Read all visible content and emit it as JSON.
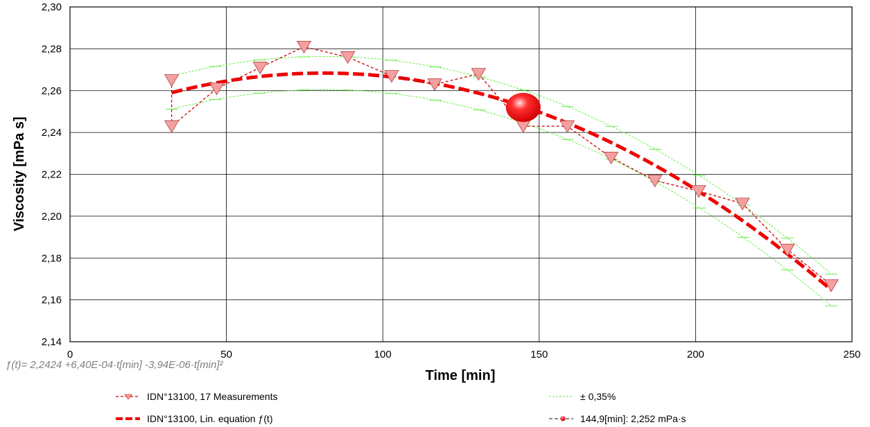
{
  "chart_data": {
    "type": "line",
    "xlabel": "Time [min]",
    "ylabel": "Viscosity [mPa s]",
    "xlim": [
      0,
      250
    ],
    "ylim": [
      2.14,
      2.3
    ],
    "x_ticks": [
      0,
      50,
      100,
      150,
      200,
      250
    ],
    "x_tick_labels": [
      "0",
      "50",
      "100",
      "150",
      "200",
      "250"
    ],
    "y_ticks": [
      2.14,
      2.16,
      2.18,
      2.2,
      2.22,
      2.24,
      2.26,
      2.28,
      2.3
    ],
    "y_tick_labels": [
      "2,14",
      "2,16",
      "2,18",
      "2,20",
      "2,22",
      "2,24",
      "2,26",
      "2,28",
      "2,30"
    ],
    "grid": true,
    "equation_text": "ƒ(t)= 2,2424 +6,40E-04·t[min] -3,94E-06·t[min]²",
    "equation": {
      "a": 2.2424,
      "b": 0.00064,
      "c": -3.94e-06
    },
    "band_percent": 0.35,
    "series": [
      {
        "name": "IDN°13100, 17 Measurements",
        "style": "measurements",
        "color": "#cc0000",
        "marker_color": "#f4a0a0",
        "x": [
          32.5,
          32.5,
          46.9,
          60.8,
          74.8,
          88.8,
          102.8,
          116.6,
          130.6,
          144.9,
          159.0,
          173.0,
          187.0,
          201.0,
          215.0,
          229.4,
          243.4
        ],
        "y": [
          2.265,
          2.243,
          2.261,
          2.271,
          2.281,
          2.276,
          2.267,
          2.263,
          2.268,
          2.243,
          2.243,
          2.228,
          2.217,
          2.212,
          2.206,
          2.184,
          2.167
        ]
      },
      {
        "name": "IDN°13100,  Lin. equation ƒ(t)",
        "style": "fit",
        "color": "#ee0000",
        "x_range": [
          32.5,
          243.4
        ]
      },
      {
        "name": "± 0,35%",
        "style": "band",
        "color": "#66ee44"
      },
      {
        "name": "144,9[min]: 2,252 mPa·s",
        "style": "highlight",
        "color": "#ee0000",
        "x": [
          144.9
        ],
        "y": [
          2.252
        ]
      }
    ]
  }
}
